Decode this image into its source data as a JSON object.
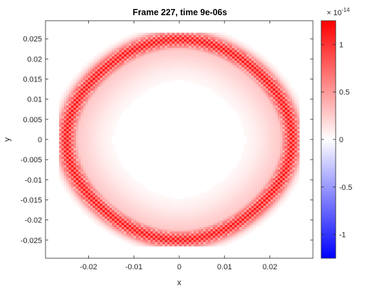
{
  "chart_data": {
    "type": "heatmap",
    "title": "Frame 227, time 9e-06s",
    "xlabel": "x",
    "ylabel": "y",
    "xlim": [
      -0.0295,
      0.0295
    ],
    "ylim": [
      -0.0295,
      0.0295
    ],
    "x_ticks": [
      -0.02,
      -0.01,
      0,
      0.01,
      0.02
    ],
    "x_tick_labels": [
      "-0.02",
      "-0.01",
      "0",
      "0.01",
      "0.02"
    ],
    "y_ticks": [
      0.025,
      0.02,
      0.015,
      0.01,
      0.005,
      0,
      -0.005,
      -0.01,
      -0.015,
      -0.02,
      -0.025
    ],
    "y_tick_labels": [
      "0.025",
      "0.02",
      "0.015",
      "0.01",
      "0.005",
      "0",
      "-0.005",
      "-0.01",
      "-0.015",
      "-0.02",
      "-0.025"
    ],
    "field": {
      "shape": "ring",
      "center": [
        0,
        0
      ],
      "radius": 0.0245,
      "ring_width": 0.0022,
      "peak_value": 1.2e-14,
      "grid_points": 100
    },
    "colorbar": {
      "colormap": "blue-white-red",
      "clim": [
        -1.25e-14,
        1.25e-14
      ],
      "exponent_label": "× 10",
      "exponent": "-14",
      "ticks": [
        1,
        0.5,
        0,
        -0.5,
        -1
      ],
      "tick_labels": [
        "1",
        "0.5",
        "0",
        "-0.5",
        "-1"
      ],
      "colors": {
        "low": "#0000ff",
        "mid": "#ffffff",
        "high": "#ff0000"
      }
    }
  }
}
